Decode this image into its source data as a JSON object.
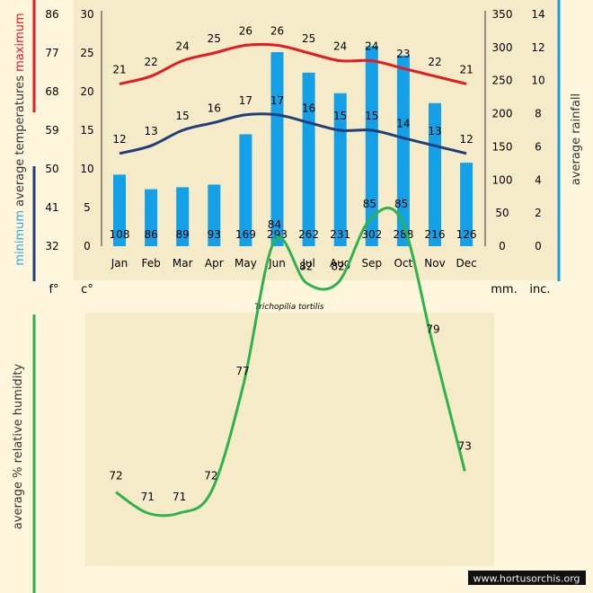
{
  "chart_data": [
    {
      "type": "bar+line",
      "title": "Trichopilia tortilis",
      "categories": [
        "Jan",
        "Feb",
        "Mar",
        "Apr",
        "May",
        "Jun",
        "Jul",
        "Aug",
        "Sep",
        "Oct",
        "Nov",
        "Dec"
      ],
      "series": [
        {
          "name": "maximum",
          "unit": "c°",
          "color": "#e31b23",
          "values": [
            21,
            22,
            24,
            25,
            26,
            26,
            25,
            24,
            24,
            23,
            22,
            21
          ]
        },
        {
          "name": "minimum",
          "unit": "c°",
          "color": "#1f3f7a",
          "values": [
            12,
            13,
            15,
            16,
            17,
            17,
            16,
            15,
            15,
            14,
            13,
            12
          ]
        },
        {
          "name": "rainfall",
          "unit": "mm.",
          "color": "#14a0e6",
          "values": [
            108,
            86,
            89,
            93,
            169,
            293,
            262,
            231,
            302,
            288,
            216,
            126
          ]
        }
      ],
      "axes": {
        "fahrenheit": {
          "label": "f°",
          "ticks": [
            "86",
            "77",
            "68",
            "59",
            "50",
            "41",
            "32"
          ]
        },
        "celsius": {
          "label": "c°",
          "ticks": [
            "30",
            "25",
            "20",
            "15",
            "10",
            "5",
            "0"
          ],
          "ylim": [
            0,
            30
          ]
        },
        "mm": {
          "label": "mm.",
          "ticks": [
            "350",
            "300",
            "250",
            "200",
            "150",
            "100",
            "50",
            "0"
          ],
          "ylim": [
            0,
            350
          ]
        },
        "inches": {
          "label": "inc.",
          "ticks": [
            "14",
            "12",
            "10",
            "8",
            "6",
            "4",
            "2",
            "0"
          ]
        }
      },
      "ylabel_left": {
        "minimum": "minimum",
        "middle": "average  temperatures",
        "maximum": "maximum"
      },
      "ylabel_right": "average rainfall"
    },
    {
      "type": "line",
      "categories": [
        "Jan",
        "Feb",
        "Mar",
        "Apr",
        "May",
        "Jun",
        "Jul",
        "Aug",
        "Sep",
        "Oct",
        "Nov",
        "Dec"
      ],
      "series": [
        {
          "name": "relative humidity",
          "color": "#2db34a",
          "values": [
            72,
            71,
            71,
            72,
            77,
            84,
            82,
            82,
            85,
            85,
            79,
            73
          ]
        }
      ],
      "ylabel": "average %  relative humidity"
    }
  ],
  "watermark": "www.hortusorchis.org"
}
